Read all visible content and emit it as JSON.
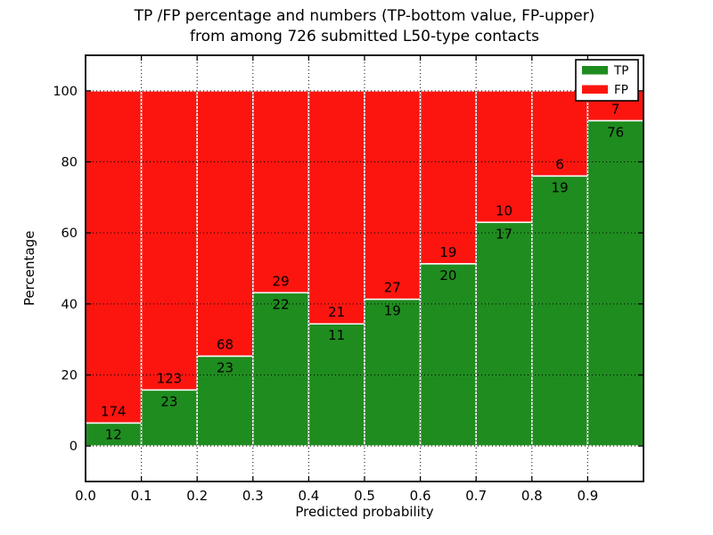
{
  "figure": {
    "title_line1": "TP /FP percentage and numbers (TP-bottom value, FP-upper)",
    "title_line2": "from among 726 submitted L50-type contacts",
    "xlabel": "Predicted probability",
    "ylabel": "Percentage"
  },
  "chart_data": {
    "type": "bar",
    "stacked": true,
    "normalized_to_percent": 100,
    "title": "TP /FP percentage and numbers (TP-bottom value, FP-upper)\nfrom among 726 submitted L50-type contacts",
    "xlabel": "Predicted probability",
    "ylabel": "Percentage",
    "total_contacts": 726,
    "categories": [
      "0.0",
      "0.1",
      "0.2",
      "0.3",
      "0.4",
      "0.5",
      "0.6",
      "0.7",
      "0.8",
      "0.9"
    ],
    "bin_width": 0.1,
    "series": [
      {
        "name": "TP",
        "color": "#1f8c1f",
        "counts": [
          12,
          23,
          23,
          22,
          11,
          19,
          20,
          17,
          19,
          76
        ]
      },
      {
        "name": "FP",
        "color": "#fc150f",
        "counts": [
          174,
          123,
          68,
          29,
          21,
          27,
          19,
          10,
          6,
          7
        ]
      }
    ],
    "tp_percent_of_bin": [
      6.45,
      15.75,
      25.27,
      43.14,
      34.38,
      41.3,
      51.28,
      62.96,
      76.0,
      91.57
    ],
    "xlim": [
      0.0,
      1.0
    ],
    "ylim": [
      -10,
      110
    ],
    "xticks": [
      0.0,
      0.1,
      0.2,
      0.3,
      0.4,
      0.5,
      0.6,
      0.7,
      0.8,
      0.9
    ],
    "xtick_labels": [
      "0.0",
      "0.1",
      "0.2",
      "0.3",
      "0.4",
      "0.5",
      "0.6",
      "0.7",
      "0.8",
      "0.9"
    ],
    "yticks": [
      0,
      20,
      40,
      60,
      80,
      100
    ],
    "ytick_labels": [
      "0",
      "20",
      "40",
      "60",
      "80",
      "100"
    ],
    "grid": "dotted",
    "legend": {
      "position": "upper-right",
      "entries": [
        {
          "label": "TP",
          "color": "#1f8c1f"
        },
        {
          "label": "FP",
          "color": "#fc150f"
        }
      ]
    }
  },
  "colors": {
    "tp_green": "#1f8c1f",
    "fp_red": "#fc150f",
    "background": "#ffffff",
    "axis": "#000000",
    "bar_edge": "#ffffff"
  }
}
